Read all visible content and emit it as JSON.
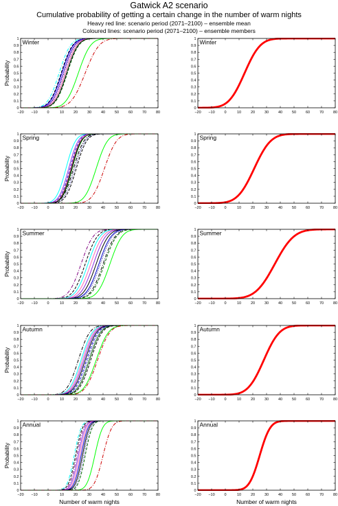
{
  "header": {
    "title": "Gatwick A2 scenario",
    "subtitle": "Cumulative probability of getting a certain change in the number of warm nights",
    "note_red": "Heavy red line: scenario period (2071–2100) – ensemble mean",
    "note_coloured": "Coloured lines: scenario period (2071–2100) – ensemble members"
  },
  "chart_data": [
    {
      "type": "line",
      "panel": "Winter ensemble members",
      "title": "Winter",
      "xlabel": "",
      "ylabel": "Probability",
      "xlim": [
        -20,
        80
      ],
      "ylim": [
        0,
        1
      ],
      "xticks": [
        "−20",
        "−10",
        "0",
        "10",
        "20",
        "30",
        "40",
        "50",
        "60",
        "70",
        "80"
      ],
      "yticks": [
        "0",
        "0.1",
        "0.2",
        "0.3",
        "0.4",
        "0.5",
        "0.6",
        "0.7",
        "0.8",
        "0.9",
        "1"
      ],
      "series": [
        {
          "color": "#00ffff",
          "style": "dashdot",
          "mu": 8,
          "s": 6.5
        },
        {
          "color": "#000000",
          "style": "dashed",
          "mu": 9.5,
          "s": 6.5
        },
        {
          "color": "#0000cc",
          "style": "solid",
          "mu": 10,
          "s": 6.5
        },
        {
          "color": "#8a2be2",
          "style": "solid",
          "mu": 11,
          "s": 6.5
        },
        {
          "color": "#000080",
          "style": "dotted",
          "mu": 11.5,
          "s": 6.5
        },
        {
          "color": "#000000",
          "style": "dashdot",
          "mu": 12.5,
          "s": 6.5
        },
        {
          "color": "#ff69b4",
          "style": "solid",
          "mu": 12.5,
          "s": 6.5
        },
        {
          "color": "#000000",
          "style": "solid",
          "mu": 13.5,
          "s": 6.5
        },
        {
          "color": "#006400",
          "style": "dashed",
          "mu": 14,
          "s": 6.5
        },
        {
          "color": "#00ff00",
          "style": "solid",
          "mu": 22,
          "s": 7
        },
        {
          "color": "#cc0000",
          "style": "dashdot",
          "mu": 27,
          "s": 8
        }
      ]
    },
    {
      "type": "line",
      "panel": "Winter ensemble mean",
      "title": "Winter",
      "xlabel": "",
      "ylabel": "",
      "xlim": [
        -20,
        80
      ],
      "ylim": [
        0,
        1
      ],
      "xticks": [
        "−20",
        "−10",
        "0",
        "10",
        "20",
        "30",
        "40",
        "50",
        "60",
        "70",
        "80"
      ],
      "yticks": [
        "0",
        "0.1",
        "0.2",
        "0.3",
        "0.4",
        "0.5",
        "0.6",
        "0.7",
        "0.8",
        "0.9",
        "1"
      ],
      "series": [
        {
          "color": "#ff0000",
          "style": "heavy",
          "mu": 14,
          "s": 9
        }
      ]
    },
    {
      "type": "line",
      "panel": "Spring ensemble members",
      "title": "Spring",
      "xlabel": "",
      "ylabel": "Probability",
      "xlim": [
        -20,
        80
      ],
      "ylim": [
        0,
        1
      ],
      "xticks": [
        "−20",
        "−10",
        "0",
        "10",
        "20",
        "30",
        "40",
        "50",
        "60",
        "70",
        "80"
      ],
      "yticks": [
        "0",
        "0.1",
        "0.2",
        "0.3",
        "0.4",
        "0.5",
        "0.6",
        "0.7",
        "0.8",
        "0.9",
        "1"
      ],
      "series": [
        {
          "color": "#00ffff",
          "style": "solid",
          "mu": 13,
          "s": 5.5
        },
        {
          "color": "#8a2be2",
          "style": "solid",
          "mu": 15,
          "s": 5.5
        },
        {
          "color": "#0000cc",
          "style": "dashed",
          "mu": 16,
          "s": 5.5
        },
        {
          "color": "#000000",
          "style": "solid",
          "mu": 17,
          "s": 5.5
        },
        {
          "color": "#ff69b4",
          "style": "solid",
          "mu": 16.5,
          "s": 5.5
        },
        {
          "color": "#006400",
          "style": "solid",
          "mu": 17.5,
          "s": 5.5
        },
        {
          "color": "#000000",
          "style": "dashdot",
          "mu": 18.5,
          "s": 6
        },
        {
          "color": "#000080",
          "style": "dotted",
          "mu": 19.5,
          "s": 6
        },
        {
          "color": "#000000",
          "style": "dashed",
          "mu": 20.5,
          "s": 6
        },
        {
          "color": "#00ff00",
          "style": "solid",
          "mu": 35,
          "s": 6.5
        },
        {
          "color": "#cc0000",
          "style": "dashdot",
          "mu": 41,
          "s": 7
        }
      ]
    },
    {
      "type": "line",
      "panel": "Spring ensemble mean",
      "title": "Spring",
      "xlabel": "",
      "ylabel": "",
      "xlim": [
        -20,
        80
      ],
      "ylim": [
        0,
        1
      ],
      "xticks": [
        "−20",
        "−10",
        "0",
        "10",
        "20",
        "30",
        "40",
        "50",
        "60",
        "70",
        "80"
      ],
      "yticks": [
        "0",
        "0.1",
        "0.2",
        "0.3",
        "0.4",
        "0.5",
        "0.6",
        "0.7",
        "0.8",
        "0.9",
        "1"
      ],
      "series": [
        {
          "color": "#ff0000",
          "style": "heavy",
          "mu": 21,
          "s": 9.5
        }
      ]
    },
    {
      "type": "line",
      "panel": "Summer ensemble members",
      "title": "Summer",
      "xlabel": "",
      "ylabel": "Probability",
      "xlim": [
        -20,
        80
      ],
      "ylim": [
        0,
        1
      ],
      "xticks": [
        "−20",
        "−10",
        "0",
        "10",
        "20",
        "30",
        "40",
        "50",
        "60",
        "70",
        "80"
      ],
      "yticks": [
        "0",
        "0.1",
        "0.2",
        "0.3",
        "0.4",
        "0.5",
        "0.6",
        "0.7",
        "0.8",
        "0.9",
        "1"
      ],
      "series": [
        {
          "color": "#800080",
          "style": "dashdot",
          "mu": 24,
          "s": 7
        },
        {
          "color": "#000000",
          "style": "dashed",
          "mu": 27,
          "s": 7
        },
        {
          "color": "#00ffff",
          "style": "solid",
          "mu": 29,
          "s": 7
        },
        {
          "color": "#ff69b4",
          "style": "solid",
          "mu": 31,
          "s": 7
        },
        {
          "color": "#8a2be2",
          "style": "solid",
          "mu": 33,
          "s": 7
        },
        {
          "color": "#000000",
          "style": "solid",
          "mu": 35,
          "s": 7
        },
        {
          "color": "#0000cc",
          "style": "solid",
          "mu": 37,
          "s": 7
        },
        {
          "color": "#000080",
          "style": "dotted",
          "mu": 38,
          "s": 7
        },
        {
          "color": "#000000",
          "style": "dashdot",
          "mu": 40,
          "s": 7
        },
        {
          "color": "#006400",
          "style": "dashed",
          "mu": 41,
          "s": 7
        },
        {
          "color": "#00ff00",
          "style": "solid",
          "mu": 45,
          "s": 7
        }
      ]
    },
    {
      "type": "line",
      "panel": "Summer ensemble mean",
      "title": "Summer",
      "xlabel": "",
      "ylabel": "",
      "xlim": [
        -20,
        80
      ],
      "ylim": [
        0,
        1
      ],
      "xticks": [
        "−20",
        "−10",
        "0",
        "10",
        "20",
        "30",
        "40",
        "50",
        "60",
        "70",
        "80"
      ],
      "yticks": [
        "0",
        "0.1",
        "0.2",
        "0.3",
        "0.4",
        "0.5",
        "0.6",
        "0.7",
        "0.8",
        "0.9",
        "1"
      ],
      "series": [
        {
          "color": "#ff0000",
          "style": "heavy",
          "mu": 36,
          "s": 11
        }
      ]
    },
    {
      "type": "line",
      "panel": "Autumn ensemble members",
      "title": "Autumn",
      "xlabel": "",
      "ylabel": "Probability",
      "xlim": [
        -20,
        80
      ],
      "ylim": [
        0,
        1
      ],
      "xticks": [
        "−20",
        "−10",
        "0",
        "10",
        "20",
        "30",
        "40",
        "50",
        "60",
        "70",
        "80"
      ],
      "yticks": [
        "0",
        "0.1",
        "0.2",
        "0.3",
        "0.4",
        "0.5",
        "0.6",
        "0.7",
        "0.8",
        "0.9",
        "1"
      ],
      "series": [
        {
          "color": "#000000",
          "style": "dashdot",
          "mu": 22,
          "s": 6.5
        },
        {
          "color": "#00ffff",
          "style": "solid",
          "mu": 24,
          "s": 6.5
        },
        {
          "color": "#ff69b4",
          "style": "solid",
          "mu": 25,
          "s": 6.5
        },
        {
          "color": "#8a2be2",
          "style": "solid",
          "mu": 26,
          "s": 6.5
        },
        {
          "color": "#000000",
          "style": "solid",
          "mu": 27,
          "s": 6.5
        },
        {
          "color": "#0000cc",
          "style": "dashed",
          "mu": 28,
          "s": 6.5
        },
        {
          "color": "#000080",
          "style": "dotted",
          "mu": 29,
          "s": 6.5
        },
        {
          "color": "#006400",
          "style": "solid",
          "mu": 30,
          "s": 6.5
        },
        {
          "color": "#000000",
          "style": "dashed",
          "mu": 31,
          "s": 6.5
        },
        {
          "color": "#00ff00",
          "style": "solid",
          "mu": 35,
          "s": 7
        },
        {
          "color": "#cc0000",
          "style": "dashdot",
          "mu": 36,
          "s": 7
        }
      ]
    },
    {
      "type": "line",
      "panel": "Autumn ensemble mean",
      "title": "Autumn",
      "xlabel": "",
      "ylabel": "",
      "xlim": [
        -20,
        80
      ],
      "ylim": [
        0,
        1
      ],
      "xticks": [
        "−20",
        "−10",
        "0",
        "10",
        "20",
        "30",
        "40",
        "50",
        "60",
        "70",
        "80"
      ],
      "yticks": [
        "0",
        "0.1",
        "0.2",
        "0.3",
        "0.4",
        "0.5",
        "0.6",
        "0.7",
        "0.8",
        "0.9",
        "1"
      ],
      "series": [
        {
          "color": "#ff0000",
          "style": "heavy",
          "mu": 28,
          "s": 9
        }
      ]
    },
    {
      "type": "line",
      "panel": "Annual ensemble members",
      "title": "Annual",
      "xlabel": "Number of warm nights",
      "ylabel": "Probability",
      "xlim": [
        -20,
        80
      ],
      "ylim": [
        0,
        1
      ],
      "xticks": [
        "−20",
        "−10",
        "0",
        "10",
        "20",
        "30",
        "40",
        "50",
        "60",
        "70",
        "80"
      ],
      "yticks": [
        "0",
        "0.1",
        "0.2",
        "0.3",
        "0.4",
        "0.5",
        "0.6",
        "0.7",
        "0.8",
        "0.9",
        "1"
      ],
      "series": [
        {
          "color": "#00ffff",
          "style": "dashdot",
          "mu": 19,
          "s": 4
        },
        {
          "color": "#000000",
          "style": "dashed",
          "mu": 20,
          "s": 4
        },
        {
          "color": "#800080",
          "style": "dashdot",
          "mu": 21,
          "s": 4
        },
        {
          "color": "#8a2be2",
          "style": "solid",
          "mu": 22,
          "s": 4
        },
        {
          "color": "#ff69b4",
          "style": "solid",
          "mu": 23,
          "s": 4
        },
        {
          "color": "#0000cc",
          "style": "solid",
          "mu": 24,
          "s": 4
        },
        {
          "color": "#000000",
          "style": "solid",
          "mu": 25,
          "s": 4
        },
        {
          "color": "#000080",
          "style": "dotted",
          "mu": 26,
          "s": 4
        },
        {
          "color": "#006400",
          "style": "dashed",
          "mu": 27,
          "s": 4
        },
        {
          "color": "#00ff00",
          "style": "solid",
          "mu": 34,
          "s": 4.5
        },
        {
          "color": "#cc0000",
          "style": "dashdot",
          "mu": 40,
          "s": 5
        }
      ]
    },
    {
      "type": "line",
      "panel": "Annual ensemble mean",
      "title": "Annual",
      "xlabel": "Number of warm nights",
      "ylabel": "",
      "xlim": [
        -20,
        80
      ],
      "ylim": [
        0,
        1
      ],
      "xticks": [
        "−20",
        "−10",
        "0",
        "10",
        "20",
        "30",
        "40",
        "50",
        "60",
        "70",
        "80"
      ],
      "yticks": [
        "0",
        "0.1",
        "0.2",
        "0.3",
        "0.4",
        "0.5",
        "0.6",
        "0.7",
        "0.8",
        "0.9",
        "1"
      ],
      "series": [
        {
          "color": "#ff0000",
          "style": "heavy",
          "mu": 25,
          "s": 6
        }
      ]
    }
  ]
}
